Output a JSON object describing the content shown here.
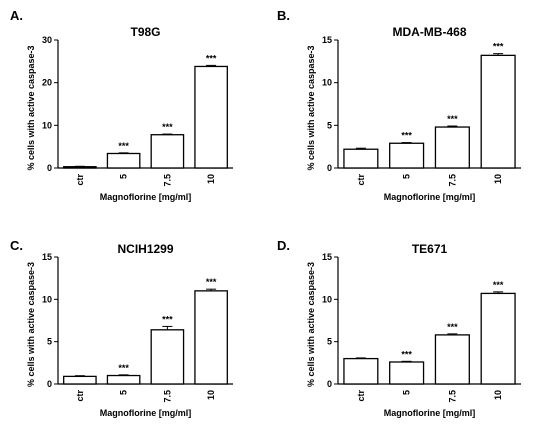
{
  "chart_data": [
    {
      "panel": "A.",
      "type": "bar",
      "title": "T98G",
      "ylabel": "% cells with active caspase-3",
      "xlabel": "Magnoflorine [mg/ml]",
      "categories": [
        "ctr",
        "5",
        "7.5",
        "10"
      ],
      "values": [
        0.3,
        3.4,
        7.8,
        23.8
      ],
      "errors": [
        0.1,
        0.15,
        0.15,
        0.25
      ],
      "significance": [
        "",
        "***",
        "***",
        "***"
      ],
      "ylim": [
        0,
        30
      ],
      "yticks": [
        "0",
        "10",
        "20",
        "30"
      ]
    },
    {
      "panel": "B.",
      "type": "bar",
      "title": "MDA-MB-468",
      "ylabel": "% cells with active caspase-3",
      "xlabel": "Magnoflorine [mg/ml]",
      "categories": [
        "ctr",
        "5",
        "7.5",
        "10"
      ],
      "values": [
        2.2,
        2.9,
        4.8,
        13.2
      ],
      "errors": [
        0.12,
        0.08,
        0.12,
        0.2
      ],
      "significance": [
        "",
        "***",
        "***",
        "***"
      ],
      "ylim": [
        0,
        15
      ],
      "yticks": [
        "0",
        "5",
        "10",
        "15"
      ]
    },
    {
      "panel": "C.",
      "type": "bar",
      "title": "NCIH1299",
      "ylabel": "% cells with active caspase-3",
      "xlabel": "Magnoflorine [mg/ml]",
      "categories": [
        "ctr",
        "5",
        "7.5",
        "10"
      ],
      "values": [
        0.9,
        1.0,
        6.4,
        11.0
      ],
      "errors": [
        0.08,
        0.08,
        0.4,
        0.2
      ],
      "significance": [
        "",
        "***",
        "***",
        "***"
      ],
      "ylim": [
        0,
        15
      ],
      "yticks": [
        "0",
        "5",
        "10",
        "15"
      ]
    },
    {
      "panel": "D.",
      "type": "bar",
      "title": "TE671",
      "ylabel": "% cells with active caspase-3",
      "xlabel": "Magnoflorine [mg/ml]",
      "categories": [
        "ctr",
        "5",
        "7.5",
        "10"
      ],
      "values": [
        3.0,
        2.6,
        5.8,
        10.7
      ],
      "errors": [
        0.08,
        0.08,
        0.12,
        0.18
      ],
      "significance": [
        "",
        "***",
        "***",
        "***"
      ],
      "ylim": [
        0,
        15
      ],
      "yticks": [
        "0",
        "5",
        "10",
        "15"
      ]
    }
  ]
}
